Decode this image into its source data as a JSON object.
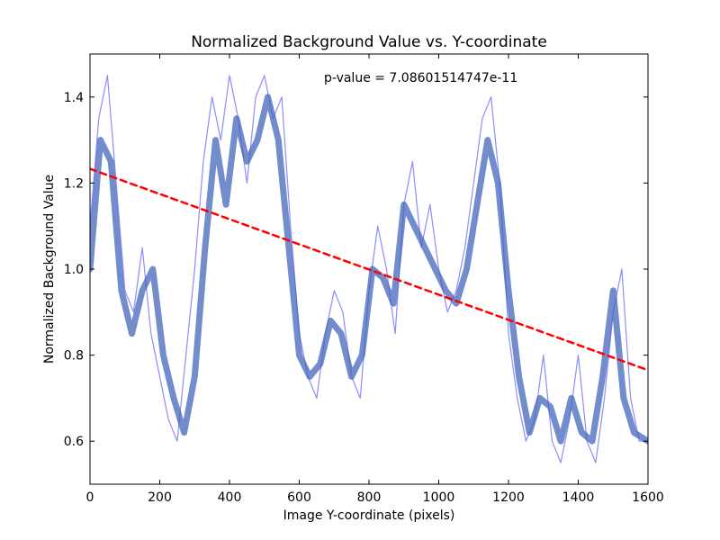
{
  "chart_data": {
    "type": "line",
    "title": "Normalized Background Value vs. Y-coordinate",
    "xlabel": "Image Y-coordinate (pixels)",
    "ylabel": "Normalized Background Value",
    "xlim": [
      0,
      1600
    ],
    "ylim": [
      0.5,
      1.5
    ],
    "xticks": [
      0,
      200,
      400,
      600,
      800,
      1000,
      1200,
      1400,
      1600
    ],
    "yticks": [
      0.6,
      0.8,
      1.0,
      1.2,
      1.4
    ],
    "xtick_labels": [
      "0",
      "200",
      "400",
      "600",
      "800",
      "1000",
      "1200",
      "1400",
      "1600"
    ],
    "ytick_labels": [
      "0.6",
      "0.8",
      "1.0",
      "1.2",
      "1.4"
    ],
    "grid": false,
    "annotation": "p-value = 7.08601514747e-11",
    "series": [
      {
        "kind": "raw",
        "color": "#0000ff",
        "opacity": 0.45,
        "x": [
          0,
          25,
          50,
          75,
          100,
          125,
          150,
          175,
          200,
          225,
          250,
          275,
          300,
          325,
          350,
          375,
          400,
          425,
          450,
          475,
          500,
          525,
          550,
          575,
          600,
          625,
          650,
          675,
          700,
          725,
          750,
          775,
          800,
          825,
          850,
          875,
          900,
          925,
          950,
          975,
          1000,
          1025,
          1050,
          1075,
          1100,
          1125,
          1150,
          1175,
          1200,
          1225,
          1250,
          1275,
          1300,
          1325,
          1350,
          1375,
          1400,
          1425,
          1450,
          1475,
          1500,
          1525,
          1550,
          1575,
          1600
        ],
        "y": [
          1.1,
          1.35,
          1.45,
          1.2,
          0.95,
          0.9,
          1.05,
          0.85,
          0.75,
          0.65,
          0.6,
          0.8,
          1.0,
          1.25,
          1.4,
          1.3,
          1.45,
          1.35,
          1.2,
          1.4,
          1.45,
          1.35,
          1.4,
          1.1,
          0.85,
          0.75,
          0.7,
          0.85,
          0.95,
          0.9,
          0.75,
          0.7,
          0.95,
          1.1,
          1.0,
          0.85,
          1.15,
          1.25,
          1.05,
          1.15,
          1.0,
          0.9,
          0.95,
          1.05,
          1.2,
          1.35,
          1.4,
          1.2,
          0.85,
          0.7,
          0.6,
          0.65,
          0.8,
          0.6,
          0.55,
          0.65,
          0.8,
          0.6,
          0.55,
          0.7,
          0.9,
          1.0,
          0.7,
          0.6,
          0.6
        ]
      },
      {
        "kind": "smooth",
        "color": "#4466bb",
        "opacity": 0.75,
        "x": [
          0,
          30,
          60,
          90,
          120,
          150,
          180,
          210,
          240,
          270,
          300,
          330,
          360,
          390,
          420,
          450,
          480,
          510,
          540,
          570,
          600,
          630,
          660,
          690,
          720,
          750,
          780,
          810,
          840,
          870,
          900,
          930,
          960,
          990,
          1020,
          1050,
          1080,
          1110,
          1140,
          1170,
          1200,
          1230,
          1260,
          1290,
          1320,
          1350,
          1380,
          1410,
          1440,
          1470,
          1500,
          1530,
          1560,
          1600
        ],
        "y": [
          1.0,
          1.3,
          1.25,
          0.95,
          0.85,
          0.95,
          1.0,
          0.8,
          0.7,
          0.62,
          0.75,
          1.05,
          1.3,
          1.15,
          1.35,
          1.25,
          1.3,
          1.4,
          1.3,
          1.05,
          0.8,
          0.75,
          0.78,
          0.88,
          0.85,
          0.75,
          0.8,
          1.0,
          0.98,
          0.92,
          1.15,
          1.1,
          1.05,
          1.0,
          0.95,
          0.92,
          1.0,
          1.15,
          1.3,
          1.2,
          0.95,
          0.75,
          0.62,
          0.7,
          0.68,
          0.6,
          0.7,
          0.62,
          0.6,
          0.75,
          0.95,
          0.7,
          0.62,
          0.6
        ]
      },
      {
        "kind": "fit",
        "color": "#ff0000",
        "style": "dashed",
        "x": [
          0,
          1600
        ],
        "y": [
          1.233,
          0.765
        ]
      }
    ]
  }
}
